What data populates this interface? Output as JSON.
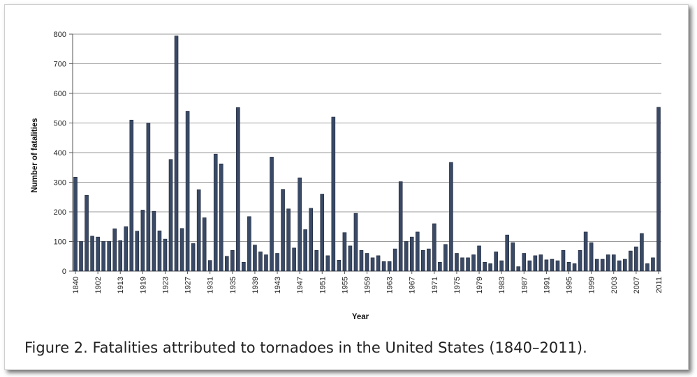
{
  "caption": "Figure 2. Fatalities attributed to tornadoes in the United States (1840–2011).",
  "chart_data": {
    "type": "bar",
    "title": "",
    "xlabel": "Year",
    "ylabel": "Number of fatalities",
    "ylim": [
      0,
      800
    ],
    "yticks": [
      0,
      100,
      200,
      300,
      400,
      500,
      600,
      700,
      800
    ],
    "grid": true,
    "bar_color": "#3a4a66",
    "tick_labels": [
      "1840",
      "1902",
      "1913",
      "1919",
      "1923",
      "1927",
      "1931",
      "1935",
      "1939",
      "1943",
      "1947",
      "1951",
      "1955",
      "1959",
      "1963",
      "1967",
      "1971",
      "1975",
      "1979",
      "1983",
      "1987",
      "1991",
      "1995",
      "1999",
      "2003",
      "2007",
      "2011"
    ],
    "tick_label_positions": [
      0,
      4,
      8,
      12,
      16,
      20,
      24,
      28,
      32,
      36,
      40,
      44,
      48,
      52,
      56,
      60,
      64,
      68,
      72,
      76,
      80,
      84,
      88,
      92,
      96,
      100,
      104
    ],
    "values": [
      317,
      100,
      256,
      118,
      115,
      100,
      100,
      143,
      103,
      150,
      510,
      135,
      206,
      500,
      202,
      136,
      108,
      377,
      794,
      144,
      540,
      93,
      275,
      180,
      36,
      395,
      362,
      50,
      70,
      552,
      30,
      184,
      88,
      65,
      55,
      385,
      60,
      276,
      210,
      78,
      315,
      140,
      212,
      70,
      260,
      52,
      520,
      37,
      130,
      85,
      195,
      70,
      60,
      45,
      52,
      32,
      32,
      75,
      302,
      100,
      115,
      132,
      70,
      75,
      160,
      30,
      90,
      367,
      60,
      45,
      45,
      55,
      85,
      30,
      25,
      65,
      35,
      122,
      96,
      15,
      60,
      35,
      52,
      55,
      38,
      40,
      35,
      70,
      30,
      25,
      70,
      132,
      96,
      40,
      40,
      55,
      55,
      35,
      40,
      68,
      82,
      127,
      25,
      45,
      553
    ]
  }
}
